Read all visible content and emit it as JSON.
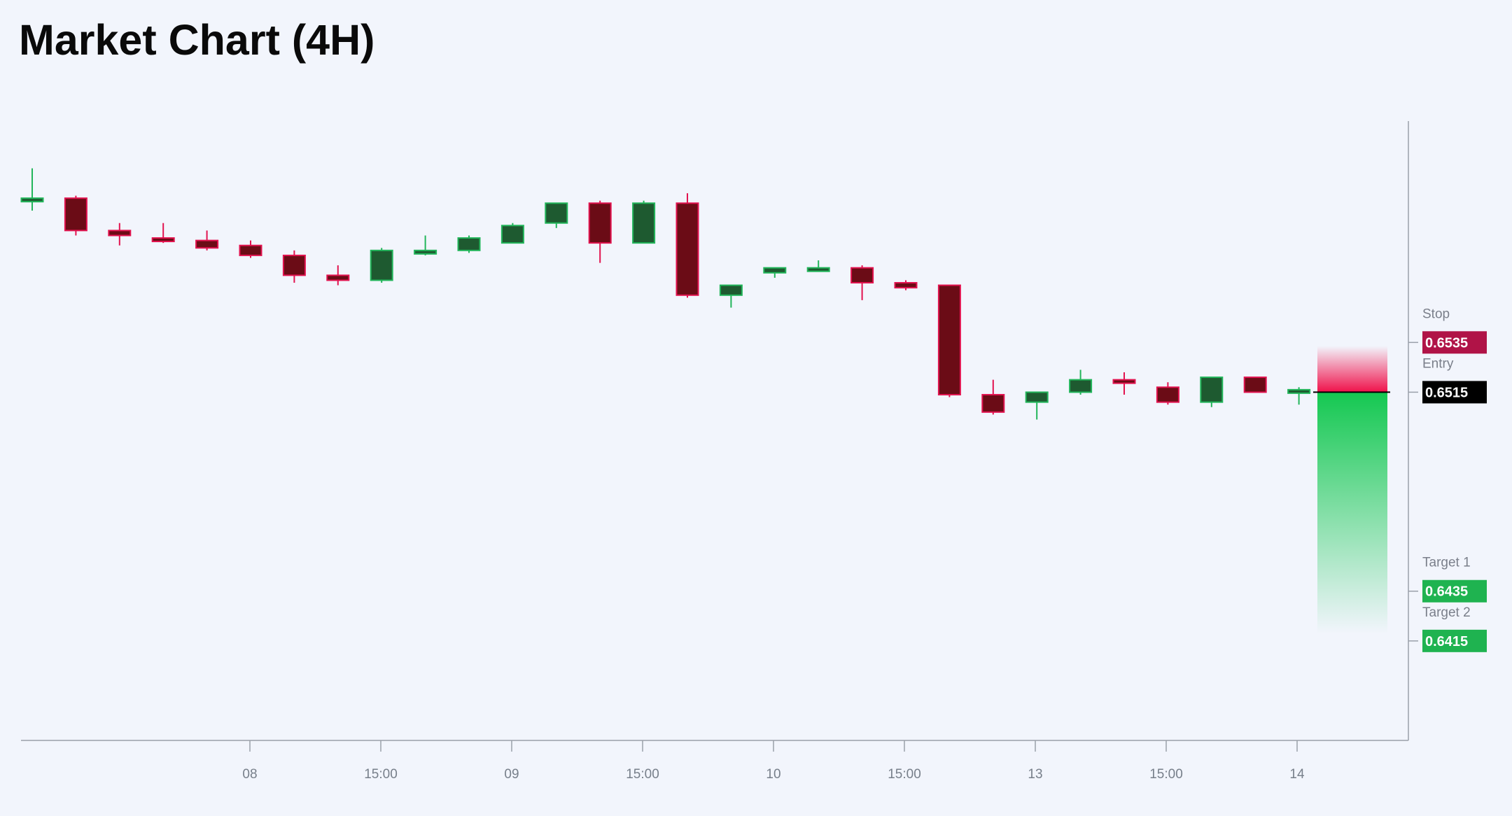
{
  "title": "Market Chart (4H)",
  "chart_data": {
    "type": "candlestick",
    "title": "Market Chart (4H)",
    "xlabel": "",
    "ylabel": "",
    "x_tick_labels": [
      "08",
      "15:00",
      "09",
      "15:00",
      "10",
      "15:00",
      "13",
      "15:00",
      "14"
    ],
    "ylim": [
      0.6375,
      0.6624
    ],
    "grid": false,
    "colors": {
      "up_fill": "#1e5a30",
      "up_border": "#22b55a",
      "down_fill": "#6b0c16",
      "down_border": "#e2134f",
      "stop": "#b01347",
      "entry": "#000000",
      "target": "#1fb350"
    },
    "candles": [
      {
        "open": 0.6592,
        "high": 0.6605,
        "low": 0.6588,
        "close": 0.6593
      },
      {
        "open": 0.6593,
        "high": 0.6594,
        "low": 0.6578,
        "close": 0.658
      },
      {
        "open": 0.658,
        "high": 0.6583,
        "low": 0.6574,
        "close": 0.6578
      },
      {
        "open": 0.6577,
        "high": 0.6583,
        "low": 0.6575,
        "close": 0.6576
      },
      {
        "open": 0.6576,
        "high": 0.658,
        "low": 0.6572,
        "close": 0.6573
      },
      {
        "open": 0.6574,
        "high": 0.6576,
        "low": 0.6569,
        "close": 0.657
      },
      {
        "open": 0.657,
        "high": 0.6572,
        "low": 0.6559,
        "close": 0.6562
      },
      {
        "open": 0.6562,
        "high": 0.6566,
        "low": 0.6558,
        "close": 0.656
      },
      {
        "open": 0.656,
        "high": 0.6573,
        "low": 0.6559,
        "close": 0.6572
      },
      {
        "open": 0.6572,
        "high": 0.6578,
        "low": 0.657,
        "close": 0.6572
      },
      {
        "open": 0.6572,
        "high": 0.6578,
        "low": 0.6571,
        "close": 0.6577
      },
      {
        "open": 0.6575,
        "high": 0.6583,
        "low": 0.6575,
        "close": 0.6582
      },
      {
        "open": 0.6583,
        "high": 0.6591,
        "low": 0.6581,
        "close": 0.6591
      },
      {
        "open": 0.6591,
        "high": 0.6592,
        "low": 0.6567,
        "close": 0.6575
      },
      {
        "open": 0.6575,
        "high": 0.6592,
        "low": 0.6575,
        "close": 0.6591
      },
      {
        "open": 0.6591,
        "high": 0.6595,
        "low": 0.6553,
        "close": 0.6554
      },
      {
        "open": 0.6554,
        "high": 0.6558,
        "low": 0.6549,
        "close": 0.6558
      },
      {
        "open": 0.6563,
        "high": 0.6565,
        "low": 0.6561,
        "close": 0.6565
      },
      {
        "open": 0.6564,
        "high": 0.6568,
        "low": 0.6564,
        "close": 0.6565
      },
      {
        "open": 0.6565,
        "high": 0.6566,
        "low": 0.6552,
        "close": 0.6559
      },
      {
        "open": 0.6559,
        "high": 0.656,
        "low": 0.6556,
        "close": 0.6557
      },
      {
        "open": 0.6558,
        "high": 0.6558,
        "low": 0.6513,
        "close": 0.6514
      },
      {
        "open": 0.6514,
        "high": 0.652,
        "low": 0.6506,
        "close": 0.6507
      },
      {
        "open": 0.6511,
        "high": 0.6515,
        "low": 0.6504,
        "close": 0.6515
      },
      {
        "open": 0.6515,
        "high": 0.6524,
        "low": 0.6514,
        "close": 0.652
      },
      {
        "open": 0.652,
        "high": 0.6523,
        "low": 0.6514,
        "close": 0.6519
      },
      {
        "open": 0.6517,
        "high": 0.6519,
        "low": 0.651,
        "close": 0.6511
      },
      {
        "open": 0.6511,
        "high": 0.6521,
        "low": 0.6509,
        "close": 0.6521
      },
      {
        "open": 0.6521,
        "high": 0.6521,
        "low": 0.6515,
        "close": 0.6515
      },
      {
        "open": 0.6515,
        "high": 0.6517,
        "low": 0.651,
        "close": 0.6516
      }
    ],
    "levels": [
      {
        "label": "Stop",
        "value": 0.6535,
        "display": "0.6535",
        "kind": "stop"
      },
      {
        "label": "Entry",
        "value": 0.6515,
        "display": "0.6515",
        "kind": "entry"
      },
      {
        "label": "Target 1",
        "value": 0.6435,
        "display": "0.6435",
        "kind": "target"
      },
      {
        "label": "Target 2",
        "value": 0.6415,
        "display": "0.6415",
        "kind": "target"
      }
    ]
  }
}
